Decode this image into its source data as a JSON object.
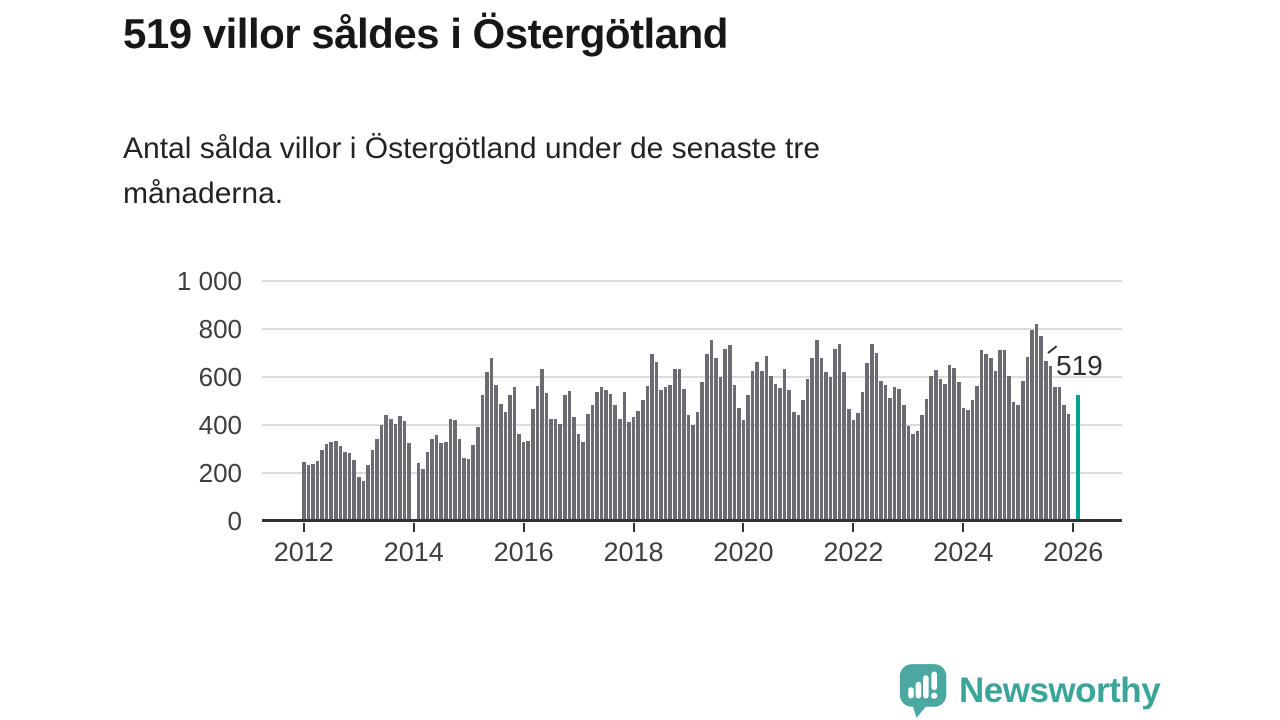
{
  "header": {
    "title": "519 villor såldes i Östergötland",
    "subtitle_lines": [
      "Antal sålda villor i Östergötland under de senaste tre",
      "månaderna."
    ],
    "subtitle_full": "Antal sålda villor i Östergötland under de senaste tre månaderna."
  },
  "chart_data": {
    "type": "bar",
    "x_start": "2012-01",
    "x_end": "2026-02",
    "x_interval": "month",
    "values": [
      243,
      228,
      232,
      247,
      290,
      315,
      323,
      330,
      308,
      285,
      278,
      252,
      181,
      162,
      230,
      290,
      338,
      395,
      437,
      420,
      400,
      435,
      412,
      319,
      null,
      237,
      213,
      285,
      337,
      353,
      319,
      323,
      420,
      415,
      337,
      257,
      254,
      312,
      386,
      521,
      615,
      677,
      563,
      484,
      452,
      519,
      553,
      358,
      323,
      330,
      461,
      560,
      629,
      528,
      422,
      422,
      402,
      519,
      539,
      429,
      358,
      326,
      440,
      481,
      532,
      553,
      540,
      525,
      480,
      420,
      533,
      408,
      430,
      455,
      500,
      560,
      690,
      659,
      543,
      553,
      563,
      629,
      629,
      546,
      436,
      395,
      452,
      573,
      690,
      752,
      673,
      594,
      714,
      728,
      564,
      466,
      415,
      519,
      622,
      659,
      622,
      684,
      601,
      567,
      549,
      629,
      543,
      450,
      436,
      498,
      587,
      677,
      750,
      677,
      615,
      594,
      711,
      732,
      615,
      463,
      418,
      445,
      535,
      655,
      732,
      697,
      580,
      563,
      507,
      553,
      546,
      480,
      392,
      360,
      370,
      436,
      505,
      601,
      624,
      587,
      567,
      645,
      635,
      573,
      466,
      457,
      498,
      560,
      708,
      690,
      673,
      622,
      708,
      708,
      601,
      491,
      480,
      580,
      679,
      793,
      818,
      766,
      663,
      642,
      553,
      553,
      480,
      443,
      null,
      519
    ],
    "highlight": {
      "position": "last",
      "value": 519,
      "label": "519",
      "color": "#00a496"
    },
    "bar_color": "#6c6b71",
    "ylim": [
      0,
      1000
    ],
    "yticks": [
      0,
      200,
      400,
      600,
      800,
      1000
    ],
    "ytick_labels": [
      "0",
      "200",
      "400",
      "600",
      "800",
      "1 000"
    ],
    "xtick_years": [
      "2012",
      "2014",
      "2016",
      "2018",
      "2020",
      "2022",
      "2024",
      "2026"
    ],
    "grid": true,
    "legend": false,
    "gridline_color": "#dcdcdc",
    "axis_color": "#333333"
  },
  "footer": {
    "brand": "Newsworthy",
    "brand_color": "#3da49a"
  }
}
